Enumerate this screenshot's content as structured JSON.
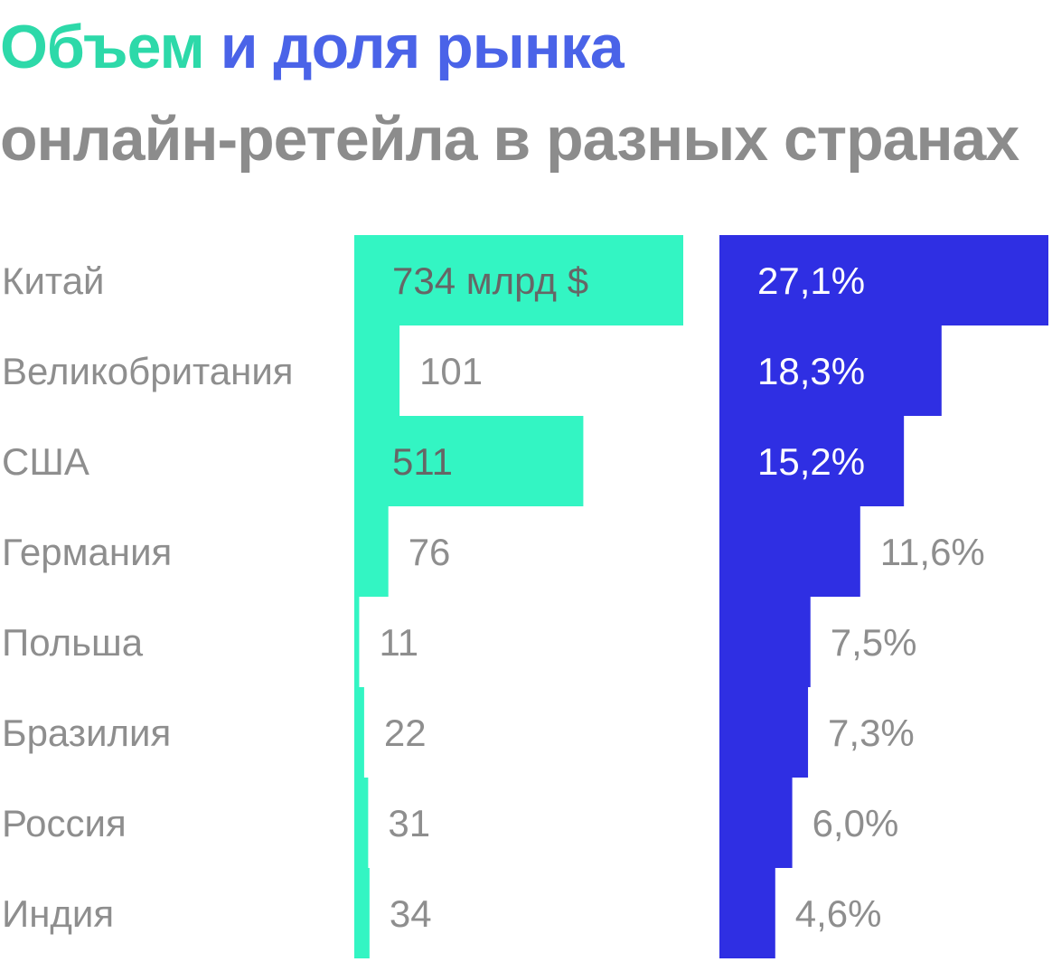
{
  "title": {
    "part1": "Объем",
    "part2": "и доля рынка",
    "line2": "онлайн-ретейла в разных странах"
  },
  "colors": {
    "volume": "#33f5c3",
    "share": "#2f2fe3",
    "title_volume": "#2dd9a9",
    "title_share": "#4a63e8",
    "label_gray": "#8e8e8e",
    "label_dark": "#666666",
    "label_white": "#ffffff"
  },
  "chart_data": {
    "type": "bar",
    "orientation": "horizontal",
    "categories": [
      "Китай",
      "Великобритания",
      "США",
      "Германия",
      "Польша",
      "Бразилия",
      "Россия",
      "Индия"
    ],
    "series": [
      {
        "name": "Объем",
        "values": [
          734,
          101,
          511,
          76,
          11,
          22,
          31,
          34
        ],
        "labels": [
          "734 млрд $",
          "101",
          "511",
          "76",
          "11",
          "22",
          "31",
          "34"
        ]
      },
      {
        "name": "доля рынка",
        "values": [
          27.1,
          18.3,
          15.2,
          11.6,
          7.5,
          7.3,
          6.0,
          4.6
        ],
        "labels": [
          "27,1%",
          "18,3%",
          "15,2%",
          "11,6%",
          "7,5%",
          "7,3%",
          "6,0%",
          "4,6%"
        ]
      }
    ]
  }
}
